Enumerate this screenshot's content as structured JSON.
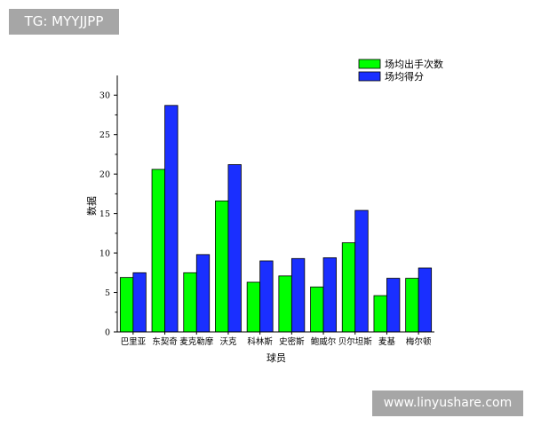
{
  "watermarks": {
    "top_left": "TG: MYYJJPP",
    "bottom_right": "www.linyushare.com"
  },
  "chart_data": {
    "type": "bar",
    "categories": [
      "巴里亚",
      "东契奇",
      "麦克勒摩",
      "沃克",
      "科林斯",
      "史密斯",
      "鲍威尔",
      "贝尔坦斯",
      "麦基",
      "梅尔顿"
    ],
    "series": [
      {
        "name": "场均出手次数",
        "color": "#00ff00",
        "values": [
          6.9,
          20.6,
          7.5,
          16.6,
          6.3,
          7.1,
          5.7,
          11.3,
          4.6,
          6.8
        ]
      },
      {
        "name": "场均得分",
        "color": "#1a2fff",
        "values": [
          7.5,
          28.7,
          9.8,
          21.2,
          9.0,
          9.3,
          9.4,
          15.4,
          6.8,
          8.1
        ]
      }
    ],
    "xlabel": "球员",
    "ylabel": "数据",
    "ylim": [
      0,
      32.5
    ],
    "yticks": [
      0,
      5,
      10,
      15,
      20,
      25,
      30
    ],
    "grid": false,
    "legend_position": "top-right"
  }
}
